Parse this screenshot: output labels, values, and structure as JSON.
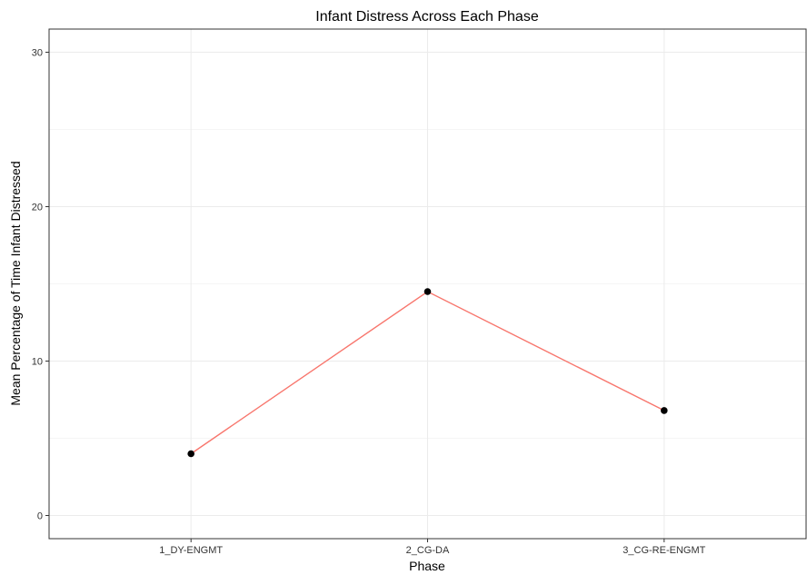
{
  "chart_data": {
    "type": "line",
    "title": "Infant Distress Across Each Phase",
    "xlabel": "Phase",
    "ylabel": "Mean Percentage of Time Infant Distressed",
    "categories": [
      "1_DY-ENGMT",
      "2_CG-DA",
      "3_CG-RE-ENGMT"
    ],
    "series": [
      {
        "values": [
          4.0,
          14.5,
          6.8
        ]
      }
    ],
    "ylim": [
      -1.5,
      31.5
    ],
    "yticks": [
      0,
      10,
      20,
      30
    ],
    "ytick_labels": [
      "0",
      "10",
      "20",
      "30"
    ],
    "grid": true,
    "line_color": "#f8766d",
    "point_color": "#000000"
  }
}
